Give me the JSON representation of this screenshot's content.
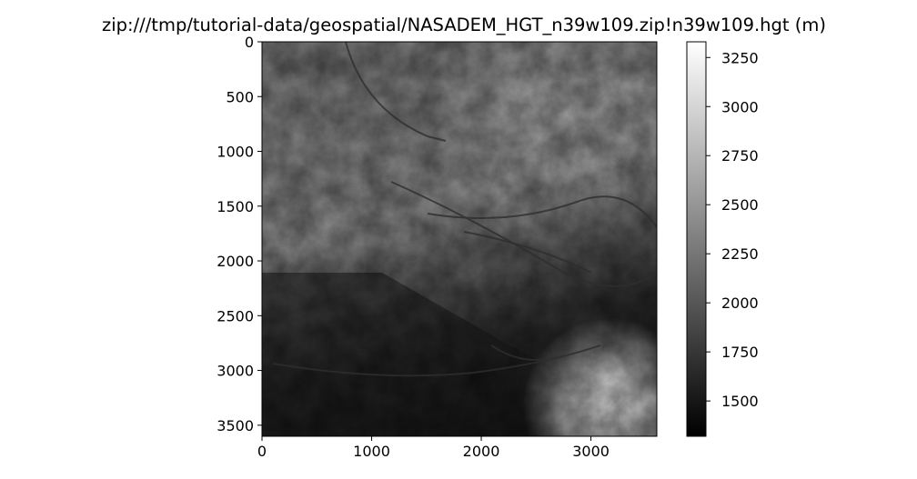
{
  "chart_data": {
    "type": "heatmap",
    "title": "zip:///tmp/tutorial-data/geospatial/NASADEM_HGT_n39w109.zip!n39w109.hgt (m)",
    "colormap": "gray",
    "x_ticks": [
      0,
      1000,
      2000,
      3000
    ],
    "y_ticks": [
      0,
      500,
      1000,
      1500,
      2000,
      2500,
      3000,
      3500
    ],
    "xlim": [
      0,
      3601
    ],
    "ylim": [
      3601,
      0
    ],
    "colorbar": {
      "ticks": [
        1500,
        1750,
        2000,
        2250,
        2500,
        2750,
        3000,
        3250
      ],
      "range": [
        1320,
        3330
      ]
    },
    "grid": false,
    "legend": "none"
  }
}
